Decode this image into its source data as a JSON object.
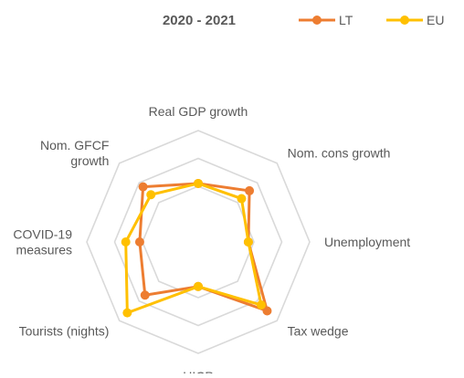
{
  "chart_data": {
    "type": "radar",
    "title": "2020 - 2021",
    "categories": [
      "Real GDP growth",
      "Nom. cons growth",
      "Unemployment",
      "Tax wedge",
      "HICP",
      "Tourists (nights)",
      "COVID-19 measures",
      "Nom. GFCF growth"
    ],
    "category_labels": [
      [
        "Real GDP growth"
      ],
      [
        "Nom. cons growth"
      ],
      [
        "Unemployment"
      ],
      [
        "Tax wedge"
      ],
      [
        "HICP"
      ],
      [
        "Tourists (nights)"
      ],
      [
        "COVID-19",
        "measures"
      ],
      [
        "Nom. GFCF",
        "growth"
      ]
    ],
    "series": [
      {
        "name": "LT",
        "color": "#ED7D31",
        "values": [
          2.1,
          2.6,
          1.8,
          3.5,
          1.6,
          2.7,
          2.1,
          2.8
        ]
      },
      {
        "name": "EU",
        "color": "#FFC000",
        "values": [
          2.1,
          2.2,
          1.8,
          3.2,
          1.6,
          3.6,
          2.6,
          2.4
        ]
      }
    ],
    "rmax": 4,
    "rings": 4,
    "grid": true,
    "legend_position": "top-right"
  }
}
